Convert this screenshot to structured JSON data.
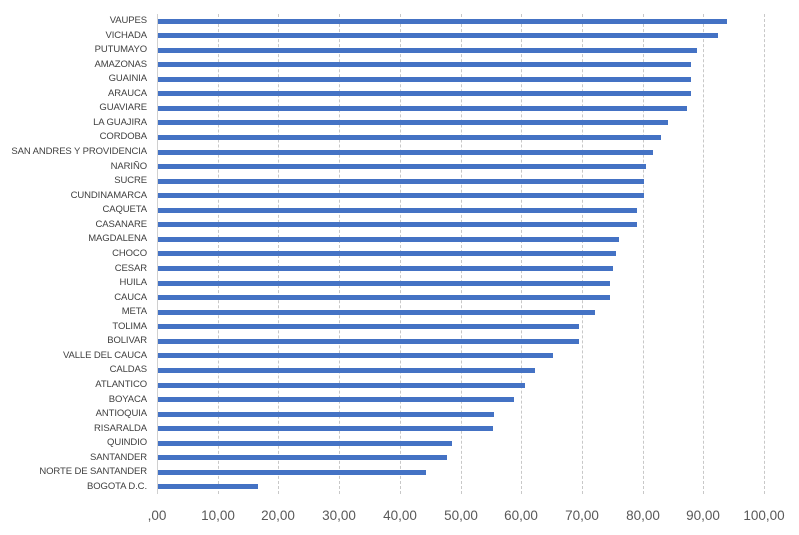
{
  "chart_data": {
    "type": "bar",
    "orientation": "horizontal",
    "title": "",
    "xlabel": "",
    "ylabel": "",
    "xlim": [
      0,
      100
    ],
    "grid": true,
    "legend": null,
    "bar_color": "#4472C4",
    "categories": [
      "VAUPES",
      "VICHADA",
      "PUTUMAYO",
      "AMAZONAS",
      "GUAINIA",
      "ARAUCA",
      "GUAVIARE",
      "LA GUAJIRA",
      "CORDOBA",
      "SAN ANDRES Y PROVIDENCIA",
      "NARIÑO",
      "SUCRE",
      "CUNDINAMARCA",
      "CAQUETA",
      "CASANARE",
      "MAGDALENA",
      "CHOCO",
      "CESAR",
      "HUILA",
      "CAUCA",
      "META",
      "TOLIMA",
      "BOLIVAR",
      "VALLE DEL CAUCA",
      "CALDAS",
      "ATLANTICO",
      "BOYACA",
      "ANTIOQUIA",
      "RISARALDA",
      "QUINDIO",
      "SANTANDER",
      "NORTE DE SANTANDER",
      "BOGOTA D.C."
    ],
    "values": [
      93.9,
      92.4,
      89.0,
      88.0,
      88.0,
      88.0,
      87.3,
      84.2,
      83.1,
      81.7,
      80.5,
      80.2,
      80.2,
      79.1,
      79.0,
      76.1,
      75.6,
      75.1,
      74.6,
      74.6,
      72.2,
      69.6,
      69.5,
      65.2,
      62.3,
      60.7,
      58.8,
      55.5,
      55.3,
      48.6,
      47.8,
      44.3,
      16.7
    ],
    "x_ticks": [
      0,
      10,
      20,
      30,
      40,
      50,
      60,
      70,
      80,
      90,
      100
    ],
    "x_tick_labels": [
      ",00",
      "10,00",
      "20,00",
      "30,00",
      "40,00",
      "50,00",
      "60,00",
      "70,00",
      "80,00",
      "90,00",
      "100,00"
    ]
  }
}
